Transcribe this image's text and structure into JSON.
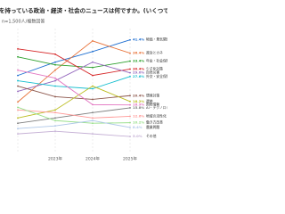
{
  "chart_data": {
    "type": "line",
    "title": "関心を持っている政治・経済・社会のニュースは何ですか。(いくつでも)",
    "subtitle": "n=1,500人/複数回答",
    "categories": [
      null,
      "2023年",
      "2024年",
      "2025年"
    ],
    "ylim": [
      0,
      45
    ],
    "series": [
      {
        "name": "物価・景気関係",
        "color": "#1f6fd1",
        "values": [
          28,
          33,
          37,
          41.4
        ],
        "value_labels": [
          null,
          null,
          null,
          "41.4%"
        ]
      },
      {
        "name": "政治とカネ",
        "color": "#e8743b",
        "values": [
          18,
          30,
          41,
          36.4
        ],
        "value_labels": [
          null,
          null,
          null,
          "36.4%"
        ]
      },
      {
        "name": "年金・社会保障",
        "color": "#2ca02c",
        "values": [
          35,
          32,
          31,
          33.4
        ],
        "value_labels": [
          null,
          null,
          null,
          "33.4%"
        ]
      },
      {
        "name": "少子化対策",
        "color": "#d62728",
        "values": [
          38,
          36,
          28,
          30.4
        ],
        "value_labels": [
          null,
          null,
          null,
          "30.4%"
        ]
      },
      {
        "name": "自然災害",
        "color": "#9467bd",
        "values": [
          22,
          26,
          33,
          29.0
        ],
        "value_labels": [
          null,
          null,
          null,
          "29.0%"
        ]
      },
      {
        "name": "外交・安全保障",
        "color": "#17becf",
        "values": [
          26,
          24,
          23,
          27.6
        ],
        "value_labels": [
          null,
          null,
          null,
          "27.6%"
        ]
      },
      {
        "name": "環境対策",
        "color": "#8c564b",
        "values": [
          24,
          20,
          19,
          20.4
        ],
        "value_labels": [
          null,
          null,
          null,
          "20.4%"
        ]
      },
      {
        "name": "選挙",
        "color": "#bcbd22",
        "values": [
          12,
          15,
          24,
          18.2
        ],
        "value_labels": [
          null,
          null,
          null,
          "18.2%"
        ]
      },
      {
        "name": "国際情勢",
        "color": "#e377c2",
        "values": [
          30,
          27,
          17,
          16.9
        ],
        "value_labels": [
          null,
          null,
          null,
          "16.9%"
        ]
      },
      {
        "name": "AI・テクノロジー",
        "color": "#7f7f7f",
        "values": [
          10,
          12,
          14,
          15.8
        ],
        "value_labels": [
          null,
          null,
          null,
          "15.8%"
        ]
      },
      {
        "name": "地域の活性化",
        "color": "#ff9896",
        "values": [
          15,
          14,
          12,
          12.6
        ],
        "value_labels": [
          null,
          null,
          null,
          "12.6%"
        ]
      },
      {
        "name": "働き方改革",
        "color": "#98df8a",
        "values": [
          16,
          11,
          10,
          10.2
        ],
        "value_labels": [
          null,
          null,
          null,
          "10.2%"
        ]
      },
      {
        "name": "農業問題",
        "color": "#aec7e8",
        "values": [
          8,
          9,
          11,
          8.4
        ],
        "value_labels": [
          null,
          null,
          null,
          "8.4%"
        ]
      },
      {
        "name": "その他",
        "color": "#c5b0d5",
        "values": [
          6,
          7,
          6,
          5.0
        ],
        "value_labels": [
          null,
          null,
          null,
          "5.0%"
        ]
      }
    ]
  }
}
